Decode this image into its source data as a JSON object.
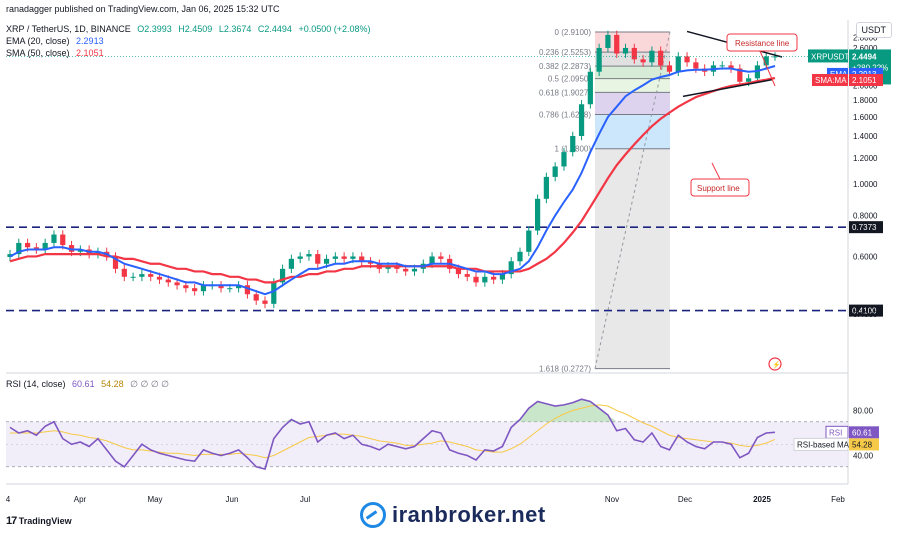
{
  "header": {
    "publisher": "ranadagger published on TradingView.com, Jan 06, 2025 15:32 UTC",
    "symbol_line": "XRP / TetherUS, 1D, BINANCE",
    "ohlc": {
      "o": "O2.3993",
      "h": "H2.4509",
      "l": "L2.3674",
      "c": "C2.4494",
      "chg": "+0.0500 (+2.08%)"
    },
    "ema_line": {
      "label": "EMA (20, close)",
      "value": "2.2913"
    },
    "sma_line": {
      "label": "SMA (50, close)",
      "value": "2.1051"
    },
    "rsi_line": {
      "label": "RSI (14, close)",
      "v1": "60.61",
      "v2": "54.28",
      "rest": "∅ ∅ ∅ ∅"
    }
  },
  "currency_button": "USDT",
  "footer": {
    "logo_text": "TradingView",
    "watermark": "iranbroker.net"
  },
  "colors": {
    "up": "#089981",
    "down": "#f23645",
    "ema": "#2962ff",
    "sma": "#f23645",
    "rsi": "#7e57c2",
    "rsi_ma": "#f7c948",
    "fib_line": "#787b86"
  },
  "chart_data": {
    "type": "candlestick",
    "x_tick_labels": [
      "4",
      "Apr",
      "May",
      "Jun",
      "Jul",
      "Nov",
      "Dec",
      "2025",
      "Feb"
    ],
    "price_axis": {
      "ticks": [
        "2.8000",
        "2.6000",
        "2.4000",
        "2.2000",
        "2.0000",
        "1.8000",
        "1.6000",
        "1.4000",
        "1.2000",
        "1.0000",
        "0.8000",
        "0.6000",
        "0.4000"
      ],
      "ylim": [
        0.27,
        2.95
      ],
      "scale": "log"
    },
    "price_tags": [
      {
        "name": "XRPUSDT",
        "value": "2.4494",
        "extra1": "+280.22%",
        "extra2": "08:27:17",
        "color": "#089981"
      },
      {
        "name": "EMA",
        "value": "2.2913",
        "color": "#2962ff"
      },
      {
        "name": "SMA:MA",
        "value": "2.1051",
        "color": "#f23645"
      }
    ],
    "horizontal_levels": [
      {
        "value": 0.7373,
        "label": "0.7373"
      },
      {
        "value": 0.41,
        "label": "0.4100"
      }
    ],
    "fib_levels": [
      {
        "ratio": "0",
        "price": 2.91,
        "label": "0 (2.9100)"
      },
      {
        "ratio": "0.236",
        "price": 2.5253,
        "label": "0.236 (2.5253)"
      },
      {
        "ratio": "0.382",
        "price": 2.2873,
        "label": "0.382 (2.2873)"
      },
      {
        "ratio": "0.5",
        "price": 2.095,
        "label": "0.5 (2.0950)"
      },
      {
        "ratio": "0.618",
        "price": 1.9027,
        "label": "0.618 (1.9027)"
      },
      {
        "ratio": "0.786",
        "price": 1.6288,
        "label": "0.786 (1.6288)"
      },
      {
        "ratio": "1",
        "price": 1.28,
        "label": "1 (1.2800)"
      },
      {
        "ratio": "1.618",
        "price": 0.2727,
        "label": "1.618 (0.2727)"
      }
    ],
    "annotations": [
      {
        "text": "Resistance line"
      },
      {
        "text": "Support line"
      }
    ],
    "price_series": [
      0.61,
      0.66,
      0.64,
      0.63,
      0.66,
      0.7,
      0.65,
      0.62,
      0.63,
      0.61,
      0.62,
      0.6,
      0.55,
      0.52,
      0.52,
      0.53,
      0.52,
      0.51,
      0.5,
      0.49,
      0.48,
      0.47,
      0.49,
      0.49,
      0.48,
      0.48,
      0.49,
      0.46,
      0.44,
      0.43,
      0.5,
      0.55,
      0.59,
      0.6,
      0.61,
      0.57,
      0.59,
      0.6,
      0.59,
      0.6,
      0.58,
      0.57,
      0.55,
      0.56,
      0.55,
      0.54,
      0.55,
      0.57,
      0.6,
      0.59,
      0.55,
      0.53,
      0.52,
      0.5,
      0.52,
      0.51,
      0.53,
      0.58,
      0.62,
      0.72,
      0.9,
      1.05,
      1.13,
      1.25,
      1.4,
      1.75,
      2.2,
      2.6,
      2.85,
      2.5,
      2.6,
      2.4,
      2.35,
      2.55,
      2.3,
      2.2,
      2.45,
      2.35,
      2.25,
      2.2,
      2.3,
      2.3,
      2.25,
      2.05,
      2.1,
      2.3,
      2.45,
      2.45
    ],
    "ema20_series": [
      0.6,
      0.62,
      0.63,
      0.63,
      0.63,
      0.64,
      0.64,
      0.63,
      0.63,
      0.62,
      0.62,
      0.61,
      0.59,
      0.57,
      0.56,
      0.55,
      0.54,
      0.53,
      0.52,
      0.51,
      0.5,
      0.5,
      0.49,
      0.49,
      0.49,
      0.49,
      0.49,
      0.48,
      0.47,
      0.46,
      0.47,
      0.49,
      0.51,
      0.53,
      0.55,
      0.55,
      0.56,
      0.57,
      0.57,
      0.58,
      0.58,
      0.58,
      0.57,
      0.57,
      0.57,
      0.56,
      0.56,
      0.56,
      0.57,
      0.57,
      0.57,
      0.56,
      0.55,
      0.54,
      0.54,
      0.53,
      0.53,
      0.54,
      0.55,
      0.58,
      0.64,
      0.72,
      0.8,
      0.88,
      0.96,
      1.08,
      1.25,
      1.42,
      1.6,
      1.72,
      1.85,
      1.93,
      2.0,
      2.08,
      2.12,
      2.15,
      2.2,
      2.22,
      2.23,
      2.23,
      2.24,
      2.25,
      2.25,
      2.22,
      2.2,
      2.21,
      2.25,
      2.29
    ],
    "sma50_series": [
      0.58,
      0.59,
      0.6,
      0.6,
      0.61,
      0.61,
      0.61,
      0.61,
      0.61,
      0.61,
      0.61,
      0.6,
      0.6,
      0.59,
      0.59,
      0.58,
      0.57,
      0.57,
      0.56,
      0.55,
      0.55,
      0.54,
      0.54,
      0.53,
      0.53,
      0.52,
      0.52,
      0.51,
      0.51,
      0.5,
      0.5,
      0.51,
      0.52,
      0.52,
      0.53,
      0.53,
      0.54,
      0.54,
      0.55,
      0.55,
      0.56,
      0.56,
      0.56,
      0.56,
      0.56,
      0.56,
      0.56,
      0.56,
      0.56,
      0.56,
      0.56,
      0.55,
      0.55,
      0.55,
      0.54,
      0.54,
      0.54,
      0.54,
      0.54,
      0.55,
      0.57,
      0.59,
      0.62,
      0.66,
      0.71,
      0.77,
      0.85,
      0.94,
      1.04,
      1.14,
      1.23,
      1.32,
      1.41,
      1.5,
      1.58,
      1.65,
      1.72,
      1.78,
      1.84,
      1.88,
      1.92,
      1.96,
      1.99,
      2.01,
      2.03,
      2.06,
      2.08,
      2.105
    ],
    "rsi": {
      "ylim": [
        20,
        100
      ],
      "ticks": [
        "80.00",
        "40.00"
      ],
      "bands": [
        70,
        30
      ],
      "series": [
        65,
        60,
        62,
        58,
        66,
        70,
        55,
        50,
        52,
        48,
        55,
        45,
        35,
        30,
        40,
        50,
        45,
        42,
        40,
        38,
        36,
        35,
        45,
        42,
        40,
        42,
        45,
        38,
        30,
        28,
        55,
        65,
        72,
        68,
        70,
        52,
        58,
        60,
        55,
        58,
        50,
        48,
        45,
        50,
        48,
        46,
        48,
        55,
        62,
        60,
        45,
        42,
        40,
        36,
        45,
        44,
        48,
        65,
        72,
        82,
        88,
        86,
        84,
        85,
        87,
        90,
        88,
        82,
        76,
        62,
        64,
        54,
        52,
        60,
        48,
        45,
        58,
        52,
        48,
        46,
        52,
        52,
        50,
        38,
        42,
        56,
        60,
        60.61
      ],
      "ma_series": [
        60,
        60,
        60,
        60,
        61,
        62,
        61,
        59,
        58,
        56,
        55,
        53,
        50,
        47,
        45,
        45,
        44,
        43,
        42,
        42,
        41,
        40,
        41,
        41,
        41,
        41,
        42,
        41,
        40,
        38,
        40,
        44,
        48,
        52,
        56,
        57,
        58,
        59,
        59,
        58,
        57,
        55,
        53,
        52,
        51,
        49,
        49,
        50,
        51,
        53,
        52,
        50,
        48,
        45,
        44,
        43,
        43,
        46,
        50,
        56,
        62,
        68,
        73,
        77,
        80,
        82,
        84,
        85,
        84,
        80,
        77,
        73,
        69,
        66,
        62,
        58,
        56,
        55,
        54,
        53,
        52,
        52,
        51,
        49,
        48,
        49,
        51,
        54.28
      ],
      "tags": [
        {
          "name": "RSI",
          "value": "60.61"
        },
        {
          "name": "RSI-based MA",
          "value": "54.28"
        }
      ]
    }
  }
}
